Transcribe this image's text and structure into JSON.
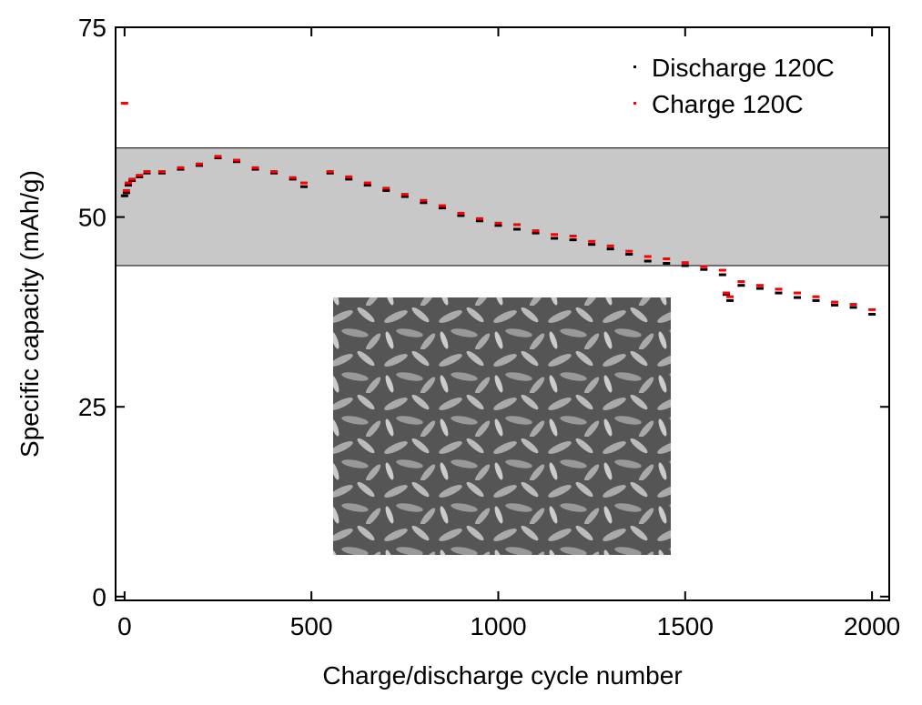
{
  "chart_data": {
    "type": "scatter",
    "x_label": "Charge/discharge cycle number",
    "y_label": "Specific capacity (mAh/g)",
    "xlim": [
      -24,
      2046
    ],
    "ylim": [
      -0.5,
      75
    ],
    "xticks": [
      0,
      500,
      1000,
      1500,
      2000
    ],
    "yticks": [
      0,
      25,
      50,
      75
    ],
    "shaded_band": [
      43.6,
      59.1
    ],
    "legend": "top-right",
    "series": [
      {
        "name": "Discharge 120C",
        "color": "#000000",
        "x": [
          0,
          5,
          10,
          20,
          40,
          60,
          100,
          150,
          200,
          250,
          300,
          350,
          400,
          450,
          480,
          550,
          600,
          650,
          700,
          750,
          800,
          850,
          900,
          950,
          1000,
          1050,
          1100,
          1150,
          1200,
          1250,
          1300,
          1350,
          1400,
          1450,
          1500,
          1550,
          1600,
          1610,
          1620,
          1650,
          1700,
          1750,
          1800,
          1850,
          1900,
          1950,
          2000
        ],
        "values": [
          52.8,
          53.2,
          54.2,
          54.8,
          55.3,
          55.8,
          55.8,
          56.3,
          56.8,
          57.8,
          57.3,
          56.3,
          55.8,
          55,
          54,
          55.8,
          55,
          54.2,
          53.5,
          52.7,
          51.9,
          51.2,
          50.2,
          49.5,
          48.9,
          48.4,
          47.9,
          47.2,
          47,
          46.4,
          45.8,
          45.1,
          44.2,
          43.9,
          43.6,
          43.1,
          42.4,
          39.8,
          39,
          41,
          40.6,
          40,
          39.4,
          39,
          38.4,
          38.1,
          37.2
        ]
      },
      {
        "name": "Charge 120C",
        "color": "#ff0000",
        "x": [
          0,
          5,
          10,
          20,
          40,
          60,
          100,
          150,
          200,
          250,
          300,
          350,
          400,
          450,
          480,
          550,
          600,
          650,
          700,
          750,
          800,
          850,
          900,
          950,
          1000,
          1050,
          1100,
          1150,
          1200,
          1250,
          1300,
          1350,
          1400,
          1450,
          1500,
          1550,
          1600,
          1610,
          1620,
          1650,
          1700,
          1750,
          1800,
          1850,
          1900,
          1950,
          2000
        ],
        "values": [
          65,
          53.5,
          54.5,
          55,
          55.5,
          56,
          56,
          56.5,
          57,
          58,
          57.5,
          56.5,
          56,
          55.2,
          54.5,
          56,
          55.3,
          54.5,
          53.8,
          53,
          52.2,
          51.5,
          50.5,
          49.8,
          49.2,
          49,
          48.2,
          47.7,
          47.5,
          46.8,
          46.2,
          45.5,
          44.8,
          44.5,
          44,
          43.5,
          43,
          40,
          39.5,
          41.5,
          41,
          40.5,
          40,
          39.5,
          38.8,
          38.5,
          37.8
        ]
      }
    ]
  }
}
